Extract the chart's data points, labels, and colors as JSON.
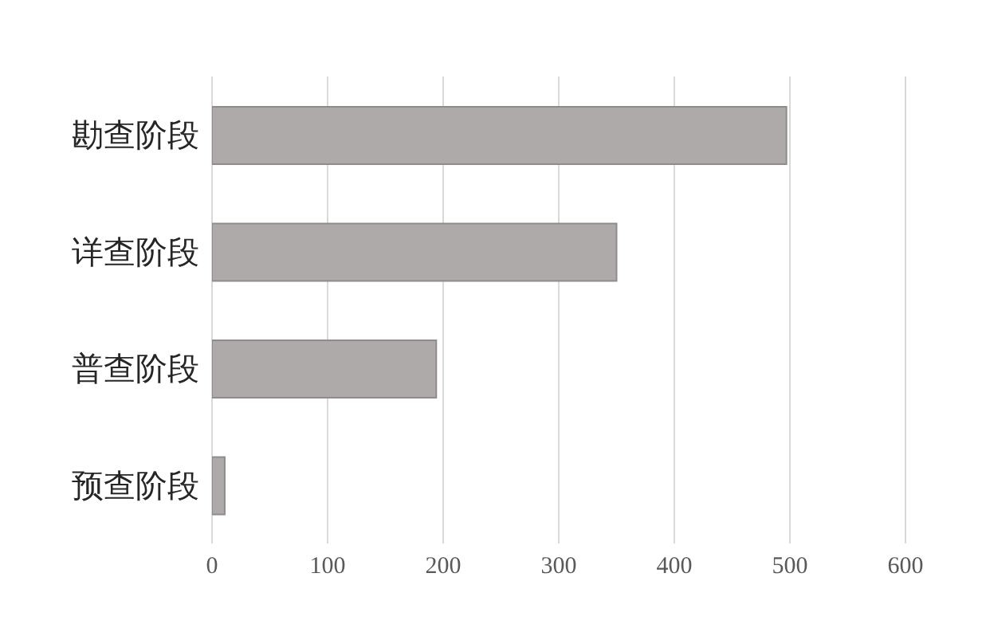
{
  "chart_data": {
    "type": "bar",
    "orientation": "horizontal",
    "categories": [
      "勘查阶段",
      "详查阶段",
      "普查阶段",
      "预查阶段"
    ],
    "values": [
      497,
      350,
      194,
      11
    ],
    "color": "#aeaaaa",
    "xlim": [
      0,
      600
    ],
    "xticks": [
      0,
      100,
      200,
      300,
      400,
      500,
      600
    ],
    "grid": "x",
    "legend": false
  }
}
